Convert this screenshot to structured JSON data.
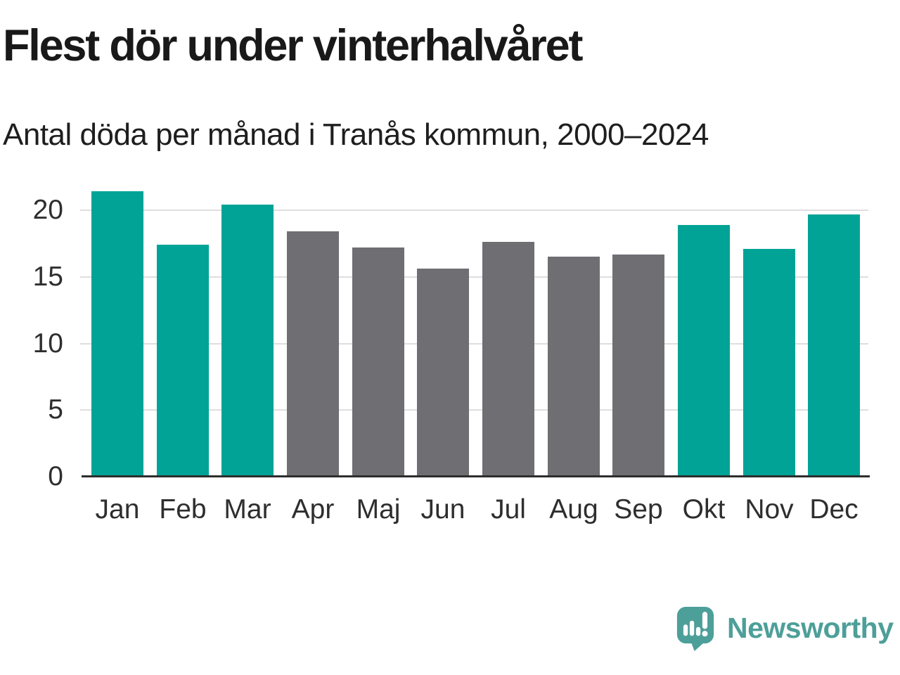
{
  "chart_data": {
    "type": "bar",
    "title": "Flest dör under vinterhalvåret",
    "subtitle": "Antal döda per månad i Tranås kommun, 2000–2024",
    "categories": [
      "Jan",
      "Feb",
      "Mar",
      "Apr",
      "Maj",
      "Jun",
      "Jul",
      "Aug",
      "Sep",
      "Okt",
      "Nov",
      "Dec"
    ],
    "values": [
      21.4,
      17.4,
      20.4,
      18.4,
      17.2,
      15.6,
      17.6,
      16.5,
      16.7,
      18.9,
      17.1,
      19.7
    ],
    "highlighted_categories": [
      "Jan",
      "Feb",
      "Mar",
      "Okt",
      "Nov",
      "Dec"
    ],
    "colors": {
      "highlight": "#00a396",
      "default": "#6e6e73",
      "gridline": "#dedede",
      "axis_line": "#2d2d2d",
      "tick_text": "#2e2e2e"
    },
    "xlabel": "",
    "ylabel": "",
    "yticks": [
      0,
      5,
      10,
      15,
      20
    ],
    "ylim": [
      0,
      22
    ],
    "grid": true,
    "legend": "none"
  },
  "branding": {
    "logo_text": "Newsworthy",
    "logo_color": "#4d9f99"
  }
}
